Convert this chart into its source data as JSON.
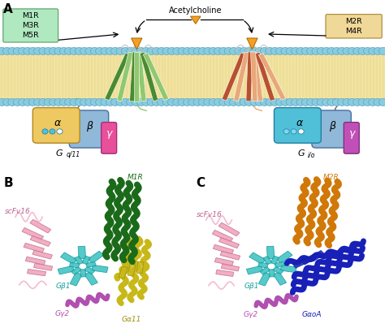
{
  "panel_A_label": "A",
  "panel_B_label": "B",
  "panel_C_label": "C",
  "M1R_box_text": "M1R\nM3R\nM5R",
  "M2R_box_text": "M2R\nM4R",
  "acetylcholine_label": "Acetylcholine",
  "alpha_label": "α",
  "beta_label": "β",
  "gamma_label": "γ",
  "Gq11_G": "G",
  "Gq11_sub": "q/11",
  "Gio_G": "G",
  "Gio_sub": "i/o",
  "scFv16_label_B": "scFv16",
  "M1R_label": "M1R",
  "Gb1_label_B": "Gβ1",
  "Gg2_label_B": "Gγ2",
  "Ga11_label": "Gα11",
  "scFv16_label_C": "scFv16",
  "M2R_label": "M2R",
  "Gb1_label_C": "Gβ1",
  "Gg2_label_C": "Gγ2",
  "GaoA_label": "GαoA",
  "mem_color": "#F2E4A0",
  "bead_color": "#88CCDF",
  "bead_outline": "#5599BB",
  "receptor_left_color": "#90C870",
  "receptor_left_dark": "#4A8A30",
  "receptor_right_color": "#E8A878",
  "receptor_right_dark": "#B85030",
  "ligand_color": "#F5A020",
  "alpha_left_color": "#EEC860",
  "alpha_right_color": "#50C0D8",
  "beta_color": "#90B8D8",
  "gamma_left_color": "#E8509A",
  "gamma_right_color": "#C050B8",
  "box_left_color": "#B0E8C0",
  "box_right_color": "#F0D898",
  "M1R_color": "#1A6A1A",
  "Ga11_color": "#C8B818",
  "Gb1_color": "#38C0C0",
  "Gg2_color": "#B050B0",
  "scFv16_color": "#F0A0B8",
  "M2R_color": "#D07808",
  "GaoA_color": "#1820B8",
  "background": "#FFFFFF"
}
